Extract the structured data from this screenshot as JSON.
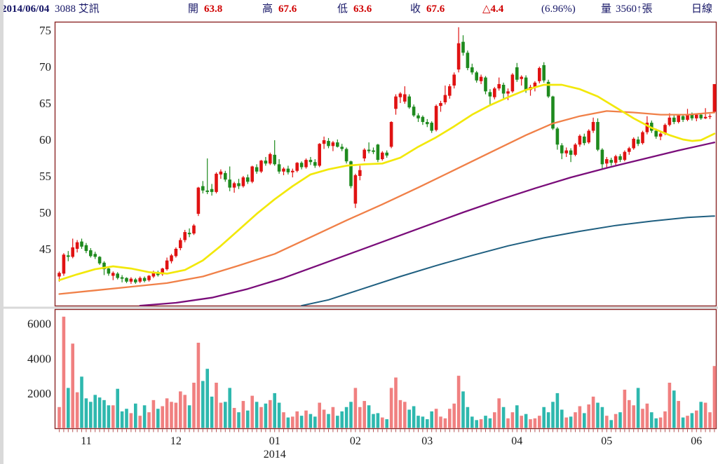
{
  "header": {
    "date": "2014/06/04",
    "stock": "3088 艾訊",
    "open_label": "開",
    "open": "63.8",
    "high_label": "高",
    "high": "67.6",
    "low_label": "低",
    "low": "63.6",
    "close_label": "收",
    "close": "67.6",
    "change": "△4.4",
    "change_pct": "(6.96%)",
    "volume_label": "量",
    "volume": "3560↑張",
    "period": "日線"
  },
  "colors": {
    "candle_up": "#e01212",
    "candle_down": "#1e8a1e",
    "vol_up": "#f08080",
    "vol_down": "#2eb8ae",
    "ma_short": "#f2e80a",
    "ma_mid": "#f08048",
    "ma_long": "#7a0d7a",
    "ma_longest": "#1f5f80",
    "pane_border": "#8b2626",
    "tick": "#b85555",
    "divider": "#d9d9d9"
  },
  "price_axis": {
    "ticks": [
      75,
      70,
      65,
      60,
      55,
      50,
      45
    ]
  },
  "volume_axis": {
    "ticks": [
      6000,
      4000,
      2000
    ]
  },
  "x_axis": {
    "months": [
      {
        "label": "11",
        "bar": 6
      },
      {
        "label": "12",
        "bar": 26
      },
      {
        "label": "01",
        "bar": 48
      },
      {
        "label": "02",
        "bar": 66
      },
      {
        "label": "03",
        "bar": 82
      },
      {
        "label": "04",
        "bar": 102
      },
      {
        "label": "05",
        "bar": 122
      },
      {
        "label": "06",
        "bar": 142
      }
    ],
    "year": "2014",
    "year_bar": 48
  },
  "chart_data": {
    "type": "candlestick+volume",
    "price_range": [
      37.0,
      76.2
    ],
    "volume_range": [
      0,
      6800
    ],
    "candles": [
      [
        41.2,
        41.9,
        40.5,
        41.7
      ],
      [
        41.6,
        44.4,
        41.3,
        44.2
      ],
      [
        44.1,
        44.7,
        43.3,
        43.9
      ],
      [
        43.9,
        46.4,
        43.7,
        45.2
      ],
      [
        45.0,
        46.2,
        44.5,
        45.9
      ],
      [
        46.0,
        46.4,
        45.0,
        45.3
      ],
      [
        45.5,
        45.8,
        44.4,
        44.7
      ],
      [
        44.8,
        45.1,
        43.8,
        44.0
      ],
      [
        44.3,
        44.6,
        43.6,
        43.9
      ],
      [
        43.9,
        44.0,
        42.8,
        43.0
      ],
      [
        43.1,
        43.3,
        41.4,
        42.2
      ],
      [
        42.3,
        42.5,
        41.3,
        41.6
      ],
      [
        41.3,
        41.9,
        40.7,
        41.7
      ],
      [
        41.6,
        41.8,
        40.8,
        41.0
      ],
      [
        41.1,
        41.4,
        40.4,
        40.9
      ],
      [
        41.0,
        41.1,
        40.3,
        40.5
      ],
      [
        40.5,
        41.1,
        40.2,
        40.9
      ],
      [
        40.8,
        41.0,
        40.2,
        40.4
      ],
      [
        40.5,
        41.2,
        40.3,
        41.0
      ],
      [
        41.0,
        41.2,
        40.4,
        40.6
      ],
      [
        40.7,
        41.4,
        40.5,
        41.3
      ],
      [
        41.2,
        42.0,
        41.0,
        41.8
      ],
      [
        41.8,
        42.0,
        41.2,
        41.4
      ],
      [
        41.5,
        42.4,
        41.3,
        42.3
      ],
      [
        42.2,
        43.8,
        42.0,
        43.4
      ],
      [
        43.3,
        44.3,
        43.0,
        44.1
      ],
      [
        44.0,
        45.2,
        43.8,
        45.0
      ],
      [
        45.1,
        46.5,
        44.8,
        46.2
      ],
      [
        46.2,
        47.6,
        45.9,
        47.3
      ],
      [
        47.2,
        47.8,
        46.6,
        47.0
      ],
      [
        47.1,
        48.4,
        46.9,
        48.2
      ],
      [
        49.8,
        53.5,
        49.5,
        53.4
      ],
      [
        53.6,
        54.3,
        52.6,
        53.0
      ],
      [
        53.0,
        57.4,
        52.5,
        52.8
      ],
      [
        53.2,
        53.9,
        52.3,
        52.8
      ],
      [
        52.8,
        55.5,
        52.6,
        55.3
      ],
      [
        55.2,
        55.9,
        54.6,
        55.6
      ],
      [
        55.4,
        55.7,
        54.2,
        54.5
      ],
      [
        54.5,
        56.3,
        52.9,
        53.4
      ],
      [
        53.4,
        54.2,
        52.7,
        54.0
      ],
      [
        54.0,
        54.6,
        53.2,
        53.6
      ],
      [
        53.6,
        55.0,
        53.4,
        54.8
      ],
      [
        54.8,
        55.2,
        53.9,
        54.2
      ],
      [
        54.2,
        56.4,
        54.0,
        56.3
      ],
      [
        56.2,
        56.6,
        55.3,
        55.6
      ],
      [
        55.6,
        57.2,
        55.4,
        57.1
      ],
      [
        57.1,
        57.6,
        56.4,
        56.7
      ],
      [
        56.7,
        58.2,
        56.5,
        58.0
      ],
      [
        57.9,
        59.9,
        56.4,
        56.6
      ],
      [
        56.6,
        57.3,
        55.3,
        55.6
      ],
      [
        55.6,
        56.2,
        55.1,
        56.0
      ],
      [
        56.0,
        56.4,
        55.2,
        55.5
      ],
      [
        55.5,
        56.0,
        54.8,
        55.7
      ],
      [
        55.7,
        56.9,
        55.5,
        56.8
      ],
      [
        56.8,
        57.0,
        55.9,
        56.2
      ],
      [
        56.2,
        57.4,
        56.0,
        57.2
      ],
      [
        57.2,
        57.6,
        56.5,
        56.9
      ],
      [
        56.9,
        57.3,
        56.1,
        56.4
      ],
      [
        56.4,
        59.5,
        56.2,
        59.4
      ],
      [
        59.4,
        60.4,
        58.7,
        59.9
      ],
      [
        59.8,
        60.2,
        58.8,
        59.1
      ],
      [
        59.1,
        59.8,
        58.4,
        59.6
      ],
      [
        59.6,
        60.0,
        58.9,
        59.0
      ],
      [
        59.0,
        59.4,
        58.4,
        58.7
      ],
      [
        58.7,
        58.9,
        56.7,
        57.0
      ],
      [
        57.0,
        57.1,
        53.3,
        53.6
      ],
      [
        51.2,
        55.3,
        50.6,
        55.1
      ],
      [
        55.0,
        56.4,
        54.4,
        55.8
      ],
      [
        57.4,
        58.8,
        57.0,
        58.6
      ],
      [
        58.6,
        59.6,
        58.1,
        58.4
      ],
      [
        58.5,
        58.9,
        58.0,
        58.3
      ],
      [
        59.3,
        59.4,
        56.9,
        57.2
      ],
      [
        57.3,
        58.4,
        57.1,
        58.2
      ],
      [
        58.2,
        58.5,
        57.5,
        57.8
      ],
      [
        59.0,
        62.5,
        58.8,
        62.4
      ],
      [
        64.2,
        66.2,
        63.4,
        65.9
      ],
      [
        65.8,
        66.5,
        65.0,
        66.3
      ],
      [
        65.2,
        67.3,
        64.9,
        66.2
      ],
      [
        65.9,
        66.2,
        64.2,
        64.4
      ],
      [
        64.5,
        64.8,
        63.1,
        63.3
      ],
      [
        63.3,
        63.6,
        62.4,
        62.9
      ],
      [
        63.1,
        63.3,
        62.0,
        62.4
      ],
      [
        62.4,
        62.8,
        61.7,
        62.1
      ],
      [
        62.3,
        62.5,
        60.9,
        61.2
      ],
      [
        61.3,
        64.8,
        61.1,
        64.6
      ],
      [
        64.6,
        65.3,
        63.8,
        65.0
      ],
      [
        65.1,
        67.4,
        64.8,
        66.1
      ],
      [
        66.0,
        67.6,
        65.6,
        67.3
      ],
      [
        67.4,
        69.2,
        67.0,
        68.9
      ],
      [
        69.6,
        75.4,
        69.2,
        73.2
      ],
      [
        73.4,
        74.3,
        71.5,
        71.9
      ],
      [
        71.9,
        72.2,
        69.5,
        69.8
      ],
      [
        69.9,
        70.4,
        68.9,
        69.2
      ],
      [
        69.2,
        69.4,
        67.8,
        68.1
      ],
      [
        68.0,
        68.9,
        67.6,
        68.6
      ],
      [
        68.5,
        68.7,
        66.2,
        66.6
      ],
      [
        66.5,
        66.9,
        64.8,
        65.9
      ],
      [
        65.8,
        67.2,
        65.5,
        67.0
      ],
      [
        67.0,
        68.5,
        66.7,
        67.6
      ],
      [
        67.5,
        67.8,
        65.5,
        66.3
      ],
      [
        66.3,
        67.0,
        65.4,
        66.6
      ],
      [
        66.6,
        69.1,
        66.4,
        68.9
      ],
      [
        69.9,
        70.5,
        67.9,
        68.2
      ],
      [
        68.3,
        68.8,
        67.4,
        68.6
      ],
      [
        68.5,
        68.8,
        66.4,
        66.8
      ],
      [
        66.8,
        67.5,
        66.0,
        67.2
      ],
      [
        67.2,
        68.0,
        66.6,
        67.8
      ],
      [
        68.0,
        70.0,
        67.7,
        69.8
      ],
      [
        70.2,
        70.6,
        67.8,
        68.1
      ],
      [
        67.9,
        68.2,
        65.7,
        65.9
      ],
      [
        65.9,
        66.0,
        61.3,
        61.5
      ],
      [
        61.5,
        61.7,
        58.6,
        59.3
      ],
      [
        59.2,
        59.5,
        57.3,
        58.1
      ],
      [
        58.1,
        58.9,
        57.6,
        58.5
      ],
      [
        58.5,
        58.8,
        56.9,
        57.9
      ],
      [
        57.9,
        59.5,
        57.7,
        59.3
      ],
      [
        59.3,
        60.7,
        59.0,
        60.5
      ],
      [
        60.4,
        60.8,
        59.2,
        59.5
      ],
      [
        59.6,
        61.4,
        59.4,
        61.2
      ],
      [
        61.2,
        63.0,
        60.9,
        62.4
      ],
      [
        62.4,
        62.9,
        58.4,
        58.6
      ],
      [
        58.6,
        58.8,
        55.9,
        56.6
      ],
      [
        56.7,
        57.6,
        56.0,
        57.3
      ],
      [
        57.2,
        57.5,
        56.4,
        56.8
      ],
      [
        56.8,
        57.9,
        56.5,
        57.7
      ],
      [
        57.7,
        58.0,
        56.9,
        57.2
      ],
      [
        57.2,
        58.5,
        57.0,
        58.3
      ],
      [
        58.3,
        59.0,
        57.9,
        58.8
      ],
      [
        58.8,
        60.3,
        58.6,
        60.1
      ],
      [
        60.0,
        60.4,
        59.1,
        59.4
      ],
      [
        59.5,
        61.2,
        59.3,
        61.0
      ],
      [
        61.0,
        63.2,
        60.7,
        62.3
      ],
      [
        62.3,
        62.6,
        60.9,
        61.2
      ],
      [
        61.2,
        61.5,
        60.1,
        60.4
      ],
      [
        60.4,
        61.0,
        59.9,
        60.8
      ],
      [
        60.8,
        62.2,
        60.6,
        62.0
      ],
      [
        62.0,
        63.6,
        61.8,
        63.0
      ],
      [
        63.0,
        63.3,
        62.1,
        62.4
      ],
      [
        62.4,
        63.5,
        62.2,
        63.3
      ],
      [
        63.2,
        63.4,
        62.4,
        62.7
      ],
      [
        62.7,
        64.2,
        62.5,
        63.5
      ],
      [
        63.4,
        63.7,
        62.6,
        62.9
      ],
      [
        62.9,
        63.6,
        62.5,
        63.4
      ],
      [
        63.4,
        63.6,
        62.7,
        62.9
      ],
      [
        62.9,
        64.3,
        62.8,
        63.1
      ],
      [
        63.1,
        63.5,
        62.8,
        63.2
      ],
      [
        63.8,
        67.6,
        63.6,
        67.6
      ]
    ],
    "volumes": [
      1200,
      6400,
      2300,
      4850,
      2050,
      2950,
      1700,
      1500,
      1900,
      1750,
      1600,
      1300,
      1300,
      2250,
      950,
      1100,
      850,
      1400,
      700,
      1300,
      900,
      1600,
      1100,
      1250,
      1700,
      1500,
      1450,
      2100,
      1900,
      1300,
      2600,
      4900,
      2700,
      3400,
      1800,
      2600,
      1450,
      1500,
      2300,
      1150,
      900,
      1550,
      1000,
      1850,
      1500,
      1200,
      1400,
      1600,
      2000,
      1450,
      900,
      600,
      650,
      950,
      700,
      1000,
      800,
      650,
      1450,
      1050,
      800,
      1200,
      700,
      950,
      1200,
      1500,
      2300,
      1200,
      1550,
      1300,
      800,
      850,
      600,
      500,
      2300,
      2900,
      1600,
      1500,
      1050,
      1250,
      700,
      650,
      500,
      950,
      1100,
      650,
      550,
      1100,
      1400,
      3000,
      2100,
      1200,
      650,
      450,
      500,
      700,
      550,
      900,
      1700,
      1200,
      550,
      900,
      1300,
      700,
      800,
      500,
      550,
      700,
      1200,
      900,
      1500,
      2000,
      1050,
      600,
      650,
      900,
      1250,
      850,
      1350,
      1800,
      1450,
      1200,
      700,
      450,
      800,
      900,
      2200,
      1600,
      1300,
      2300,
      1100,
      1400,
      900,
      550,
      600,
      950,
      2600,
      2150,
      1550,
      600,
      700,
      850,
      1000,
      1500,
      1450,
      900,
      3560
    ],
    "moving_averages": {
      "ma_short": {
        "color_key": "ma_short",
        "points": [
          [
            0,
            40.7
          ],
          [
            4,
            41.5
          ],
          [
            8,
            42.2
          ],
          [
            12,
            42.6
          ],
          [
            16,
            42.3
          ],
          [
            20,
            41.8
          ],
          [
            24,
            41.6
          ],
          [
            28,
            42.1
          ],
          [
            32,
            43.4
          ],
          [
            36,
            45.4
          ],
          [
            40,
            47.6
          ],
          [
            44,
            49.8
          ],
          [
            48,
            51.8
          ],
          [
            52,
            53.6
          ],
          [
            56,
            55.2
          ],
          [
            60,
            55.9
          ],
          [
            64,
            56.4
          ],
          [
            68,
            56.6
          ],
          [
            72,
            56.7
          ],
          [
            76,
            57.5
          ],
          [
            80,
            59.0
          ],
          [
            84,
            60.3
          ],
          [
            88,
            61.8
          ],
          [
            92,
            63.4
          ],
          [
            96,
            64.7
          ],
          [
            100,
            65.8
          ],
          [
            104,
            66.8
          ],
          [
            108,
            67.5
          ],
          [
            112,
            67.5
          ],
          [
            116,
            66.9
          ],
          [
            120,
            65.9
          ],
          [
            124,
            64.4
          ],
          [
            128,
            62.9
          ],
          [
            132,
            61.6
          ],
          [
            136,
            60.6
          ],
          [
            139,
            60.0
          ],
          [
            141,
            59.8
          ],
          [
            143,
            59.9
          ],
          [
            146,
            60.8
          ]
        ]
      },
      "ma_mid": {
        "color_key": "ma_mid",
        "points": [
          [
            0,
            38.8
          ],
          [
            8,
            39.3
          ],
          [
            16,
            39.8
          ],
          [
            24,
            40.3
          ],
          [
            32,
            41.2
          ],
          [
            40,
            42.7
          ],
          [
            48,
            44.3
          ],
          [
            56,
            46.6
          ],
          [
            64,
            48.9
          ],
          [
            72,
            51.1
          ],
          [
            80,
            53.4
          ],
          [
            88,
            55.8
          ],
          [
            96,
            58.2
          ],
          [
            104,
            60.6
          ],
          [
            110,
            62.2
          ],
          [
            116,
            63.2
          ],
          [
            122,
            63.9
          ],
          [
            128,
            63.7
          ],
          [
            134,
            63.4
          ],
          [
            140,
            63.4
          ],
          [
            146,
            63.7
          ]
        ]
      },
      "ma_long": {
        "color_key": "ma_long",
        "points": [
          [
            18,
            37.2
          ],
          [
            26,
            37.6
          ],
          [
            34,
            38.3
          ],
          [
            42,
            39.5
          ],
          [
            50,
            41.0
          ],
          [
            58,
            42.8
          ],
          [
            66,
            44.6
          ],
          [
            74,
            46.4
          ],
          [
            82,
            48.2
          ],
          [
            90,
            50.0
          ],
          [
            98,
            51.7
          ],
          [
            106,
            53.3
          ],
          [
            114,
            54.8
          ],
          [
            122,
            56.1
          ],
          [
            130,
            57.3
          ],
          [
            138,
            58.5
          ],
          [
            146,
            59.6
          ]
        ]
      },
      "ma_longest": {
        "color_key": "ma_longest",
        "points": [
          [
            54,
            37.2
          ],
          [
            60,
            38.0
          ],
          [
            68,
            39.6
          ],
          [
            76,
            41.2
          ],
          [
            84,
            42.7
          ],
          [
            92,
            44.1
          ],
          [
            100,
            45.4
          ],
          [
            108,
            46.5
          ],
          [
            116,
            47.4
          ],
          [
            124,
            48.2
          ],
          [
            132,
            48.8
          ],
          [
            140,
            49.3
          ],
          [
            146,
            49.5
          ]
        ]
      }
    }
  }
}
